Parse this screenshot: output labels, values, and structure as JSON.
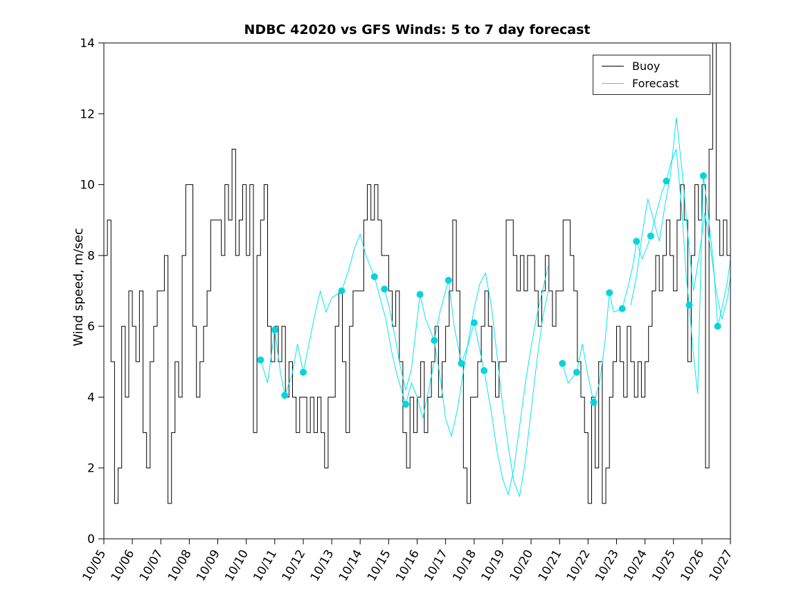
{
  "chart_data": {
    "type": "line",
    "title": "NDBC 42020 vs GFS Winds: 5 to 7 day forecast",
    "xlabel": "",
    "ylabel": "Wind speed, m/sec",
    "xlim": [
      0,
      22
    ],
    "ylim": [
      0,
      14
    ],
    "grid": false,
    "x_unit": "days, 0 = 10/05",
    "x_tick_labels": [
      "10/05",
      "10/06",
      "10/07",
      "10/08",
      "10/09",
      "10/10",
      "10/11",
      "10/12",
      "10/13",
      "10/14",
      "10/15",
      "10/16",
      "10/17",
      "10/18",
      "10/19",
      "10/20",
      "10/21",
      "10/22",
      "10/23",
      "10/24",
      "10/25",
      "10/26",
      "10/27"
    ],
    "y_ticks": [
      0,
      2,
      4,
      6,
      8,
      10,
      12,
      14
    ],
    "legend": {
      "position": "top-right",
      "entries": [
        {
          "label": "Buoy",
          "color": "#000000"
        },
        {
          "label": "Forecast",
          "color": "#00e5ee"
        }
      ]
    },
    "series": [
      {
        "name": "Buoy",
        "type": "stairs",
        "color": "#000000",
        "t0": 0,
        "dt": 0.125,
        "values": [
          8,
          9,
          5,
          1,
          2,
          6,
          4,
          7,
          6,
          5,
          7,
          3,
          2,
          5,
          6,
          7,
          7,
          8,
          1,
          3,
          5,
          4,
          8,
          10,
          10,
          6,
          4,
          5,
          6,
          7,
          9,
          9,
          9,
          8,
          10,
          9,
          11,
          8,
          9,
          10,
          8,
          10,
          3,
          8,
          9,
          10,
          6,
          5,
          6,
          5,
          6,
          4,
          5,
          4,
          3,
          4,
          4,
          3,
          4,
          3,
          4,
          3,
          2,
          4,
          4,
          6,
          7,
          5,
          3,
          6,
          7,
          7,
          7,
          9,
          10,
          9,
          10,
          9,
          8,
          8,
          7,
          6,
          7,
          5,
          3,
          2,
          4,
          3,
          4,
          5,
          3,
          4,
          5,
          6,
          4,
          5,
          6,
          7,
          9,
          7,
          5,
          2,
          1,
          4,
          4,
          5,
          6,
          7,
          6,
          5,
          4,
          5,
          5,
          9,
          9,
          8,
          7,
          8,
          7,
          8,
          8,
          7,
          6,
          7,
          8,
          7,
          6,
          7,
          7,
          9,
          9,
          8,
          7,
          5,
          4,
          3,
          1,
          4,
          2,
          5,
          1,
          2,
          4,
          5,
          6,
          5,
          4,
          6,
          5,
          4,
          5,
          4,
          5,
          6,
          7,
          8,
          7,
          8,
          9,
          8,
          7,
          9,
          10,
          9,
          5,
          8,
          10,
          9,
          10,
          2,
          11,
          14,
          9,
          8,
          9,
          8
        ]
      },
      {
        "name": "Forecast run 1",
        "type": "line",
        "color": "#00e5ee",
        "points": [
          [
            5.5,
            5.05
          ],
          [
            5.75,
            4.4
          ],
          [
            6.0,
            5.9
          ],
          [
            6.2,
            4.7
          ],
          [
            6.35,
            4.05
          ],
          [
            6.6,
            4.6
          ],
          [
            6.8,
            5.5
          ],
          [
            7.0,
            4.7
          ],
          [
            7.2,
            5.5
          ],
          [
            7.4,
            6.3
          ],
          [
            7.6,
            7.0
          ],
          [
            7.8,
            6.4
          ],
          [
            8.0,
            6.8
          ],
          [
            8.35,
            7.0
          ],
          [
            8.6,
            7.6
          ],
          [
            8.8,
            8.2
          ],
          [
            9.0,
            8.6
          ],
          [
            9.2,
            8.0
          ],
          [
            9.5,
            7.4
          ],
          [
            9.7,
            6.8
          ],
          [
            9.9,
            6.2
          ],
          [
            10.1,
            5.3
          ],
          [
            10.3,
            4.6
          ],
          [
            10.6,
            3.8
          ],
          [
            10.8,
            4.4
          ],
          [
            11.0,
            4.0
          ],
          [
            11.2,
            3.4
          ],
          [
            11.4,
            4.2
          ],
          [
            11.6,
            5.0
          ]
        ]
      },
      {
        "name": "Forecast run 2",
        "type": "line",
        "color": "#00e5ee",
        "points": [
          [
            9.85,
            7.05
          ],
          [
            10.0,
            6.6
          ],
          [
            10.2,
            5.8
          ],
          [
            10.4,
            4.9
          ],
          [
            10.6,
            4.2
          ],
          [
            10.8,
            4.8
          ],
          [
            11.1,
            6.9
          ],
          [
            11.3,
            6.2
          ],
          [
            11.6,
            5.6
          ],
          [
            11.8,
            6.4
          ],
          [
            12.1,
            7.3
          ],
          [
            12.3,
            6.0
          ],
          [
            12.55,
            4.95
          ],
          [
            12.8,
            5.5
          ],
          [
            13.0,
            6.1
          ],
          [
            13.35,
            4.75
          ],
          [
            13.6,
            3.6
          ],
          [
            13.8,
            2.5
          ],
          [
            14.0,
            1.7
          ],
          [
            14.2,
            1.25
          ],
          [
            14.4,
            2.0
          ],
          [
            14.6,
            3.2
          ],
          [
            14.8,
            4.4
          ],
          [
            15.0,
            5.4
          ],
          [
            15.2,
            6.3
          ],
          [
            15.4,
            7.0
          ],
          [
            15.6,
            7.7
          ]
        ]
      },
      {
        "name": "Forecast run 3",
        "type": "line",
        "color": "#00e5ee",
        "points": [
          [
            11.6,
            5.6
          ],
          [
            11.8,
            4.6
          ],
          [
            12.0,
            3.4
          ],
          [
            12.2,
            2.9
          ],
          [
            12.4,
            3.6
          ],
          [
            12.6,
            4.6
          ],
          [
            12.8,
            5.6
          ],
          [
            13.0,
            6.5
          ],
          [
            13.2,
            7.2
          ],
          [
            13.4,
            7.5
          ],
          [
            13.6,
            6.6
          ],
          [
            13.8,
            5.2
          ],
          [
            14.0,
            3.8
          ],
          [
            14.2,
            2.6
          ],
          [
            14.4,
            1.6
          ],
          [
            14.6,
            1.2
          ],
          [
            14.8,
            2.2
          ],
          [
            15.0,
            3.6
          ],
          [
            15.2,
            5.0
          ],
          [
            15.4,
            6.2
          ],
          [
            15.6,
            7.0
          ]
        ]
      },
      {
        "name": "Forecast run 4",
        "type": "line",
        "color": "#00e5ee",
        "points": [
          [
            16.1,
            4.95
          ],
          [
            16.3,
            4.4
          ],
          [
            16.6,
            4.7
          ],
          [
            16.8,
            5.5
          ],
          [
            17.0,
            4.6
          ],
          [
            17.2,
            3.85
          ],
          [
            17.4,
            4.4
          ],
          [
            17.6,
            5.6
          ],
          [
            17.75,
            6.95
          ],
          [
            17.9,
            6.4
          ],
          [
            18.2,
            6.5
          ],
          [
            18.4,
            7.1
          ],
          [
            18.6,
            7.8
          ],
          [
            18.7,
            8.4
          ],
          [
            18.9,
            7.9
          ],
          [
            19.1,
            8.3
          ],
          [
            19.2,
            8.55
          ],
          [
            19.4,
            9.2
          ],
          [
            19.6,
            9.8
          ],
          [
            19.75,
            10.1
          ],
          [
            19.9,
            10.6
          ],
          [
            20.1,
            11.0
          ],
          [
            20.3,
            9.2
          ],
          [
            20.45,
            7.4
          ],
          [
            20.55,
            6.6
          ],
          [
            20.7,
            5.2
          ],
          [
            20.85,
            4.1
          ],
          [
            20.95,
            7.4
          ],
          [
            21.05,
            10.25
          ],
          [
            21.2,
            9.3
          ],
          [
            21.4,
            7.8
          ],
          [
            21.55,
            6.0
          ],
          [
            21.7,
            6.5
          ],
          [
            21.9,
            7.3
          ],
          [
            22.0,
            7.9
          ]
        ]
      },
      {
        "name": "Forecast run 5",
        "type": "line",
        "color": "#00e5ee",
        "points": [
          [
            18.5,
            6.6
          ],
          [
            18.7,
            7.4
          ],
          [
            18.9,
            8.6
          ],
          [
            19.1,
            9.6
          ],
          [
            19.3,
            9.0
          ],
          [
            19.5,
            8.4
          ],
          [
            19.7,
            9.4
          ],
          [
            19.9,
            10.3
          ],
          [
            20.1,
            11.9
          ],
          [
            20.3,
            10.4
          ],
          [
            20.5,
            8.6
          ],
          [
            20.7,
            7.0
          ],
          [
            20.9,
            8.0
          ],
          [
            21.1,
            9.2
          ],
          [
            21.3,
            8.2
          ],
          [
            21.5,
            7.0
          ],
          [
            21.7,
            6.2
          ],
          [
            21.9,
            6.8
          ],
          [
            22.0,
            7.4
          ]
        ]
      }
    ],
    "markers": {
      "name": "Forecast daily markers",
      "color": "#00d5de",
      "points": [
        [
          5.5,
          5.05
        ],
        [
          6.0,
          5.9
        ],
        [
          6.35,
          4.05
        ],
        [
          7.0,
          4.7
        ],
        [
          8.35,
          7.0
        ],
        [
          9.5,
          7.4
        ],
        [
          9.85,
          7.05
        ],
        [
          10.6,
          3.8
        ],
        [
          11.1,
          6.9
        ],
        [
          11.6,
          5.6
        ],
        [
          12.1,
          7.3
        ],
        [
          12.55,
          4.95
        ],
        [
          13.0,
          6.1
        ],
        [
          13.35,
          4.75
        ],
        [
          16.1,
          4.95
        ],
        [
          16.6,
          4.7
        ],
        [
          17.2,
          3.85
        ],
        [
          17.75,
          6.95
        ],
        [
          18.2,
          6.5
        ],
        [
          18.7,
          8.4
        ],
        [
          19.2,
          8.55
        ],
        [
          19.75,
          10.1
        ],
        [
          20.55,
          6.6
        ],
        [
          21.05,
          10.25
        ],
        [
          21.55,
          6.0
        ]
      ]
    }
  }
}
